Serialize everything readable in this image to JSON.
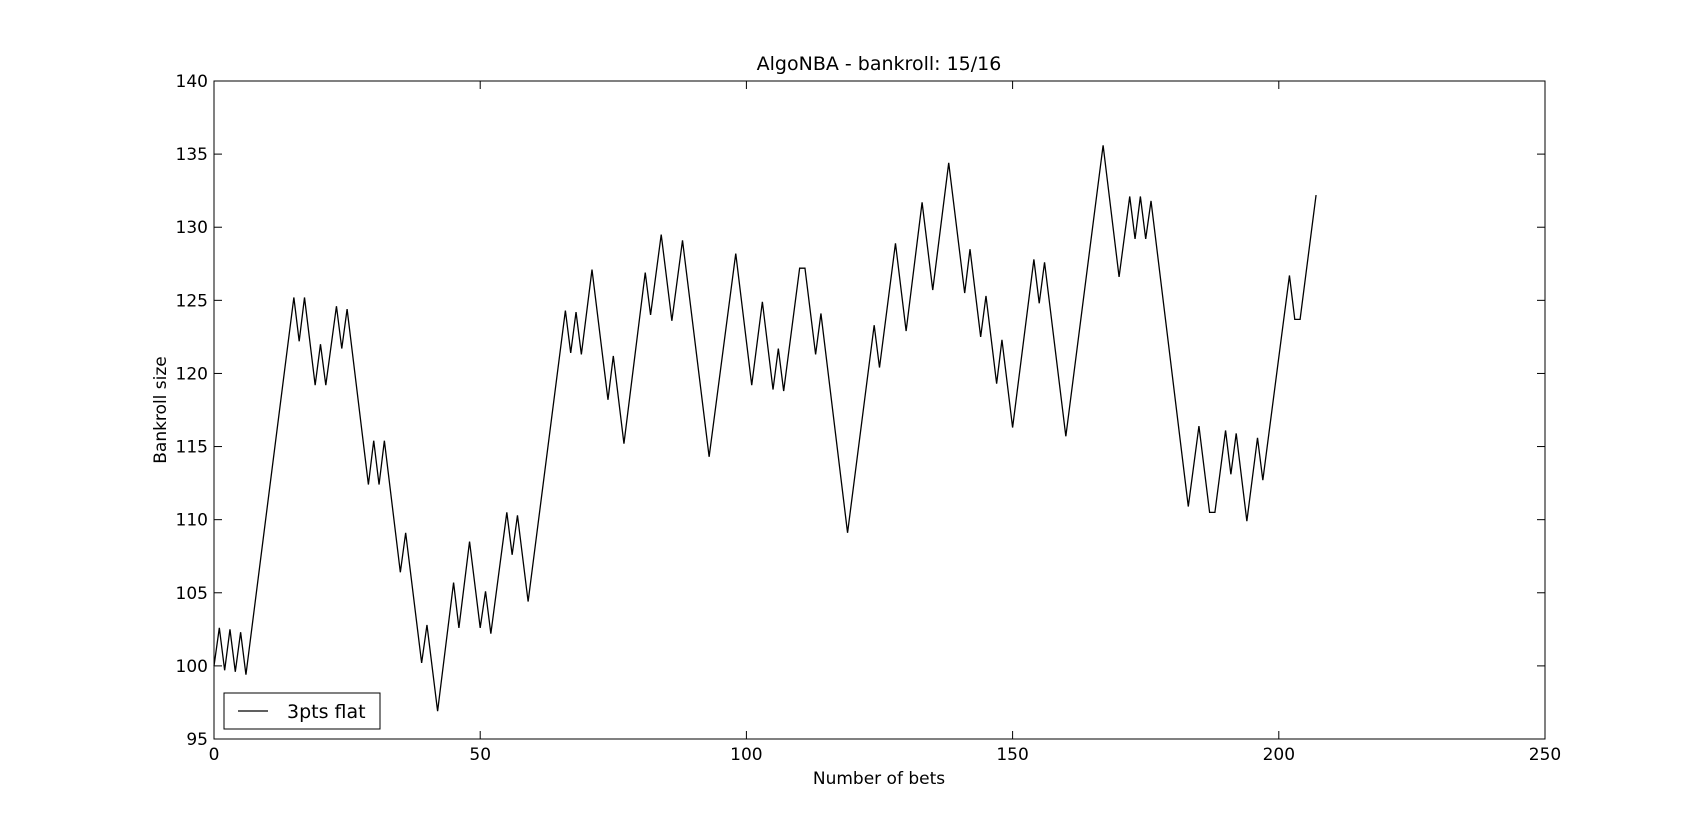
{
  "chart_data": {
    "type": "line",
    "title": "AlgoNBA - bankroll: 15/16",
    "x_label": "Number of bets",
    "y_label": "Bankroll size",
    "xlim": [
      0,
      250
    ],
    "xticks": [
      0,
      50,
      100,
      150,
      200,
      250
    ],
    "ylim": [
      95,
      140
    ],
    "yticks": [
      95,
      100,
      105,
      110,
      115,
      120,
      125,
      130,
      135,
      140
    ],
    "legend_position": "lower left",
    "x": [
      0,
      1,
      2,
      3,
      4,
      5,
      6,
      15,
      16,
      17,
      19,
      20,
      21,
      23,
      24,
      25,
      29,
      30,
      31,
      32,
      35,
      36,
      39,
      40,
      42,
      45,
      46,
      48,
      50,
      51,
      52,
      55,
      56,
      57,
      59,
      66,
      67,
      68,
      69,
      71,
      74,
      75,
      77,
      81,
      82,
      84,
      86,
      88,
      93,
      98,
      101,
      103,
      105,
      106,
      107,
      110,
      111,
      113,
      114,
      119,
      124,
      125,
      128,
      130,
      133,
      135,
      138,
      141,
      142,
      144,
      145,
      147,
      148,
      150,
      154,
      155,
      156,
      160,
      167,
      170,
      172,
      173,
      174,
      175,
      176,
      183,
      185,
      187,
      188,
      190,
      191,
      192,
      194,
      196,
      197,
      202,
      203,
      204,
      207
    ],
    "series": [
      {
        "name": "3pts flat",
        "color": "#000000",
        "values": [
          100.0,
          102.6,
          99.7,
          102.5,
          99.6,
          102.3,
          99.4,
          125.2,
          122.2,
          125.2,
          119.2,
          122.0,
          119.2,
          124.6,
          121.7,
          124.4,
          112.4,
          115.4,
          112.4,
          115.4,
          106.4,
          109.1,
          100.2,
          102.8,
          96.9,
          105.7,
          102.6,
          108.5,
          102.6,
          105.1,
          102.2,
          110.5,
          107.6,
          110.3,
          104.4,
          124.3,
          121.4,
          124.2,
          121.3,
          127.1,
          118.2,
          121.2,
          115.2,
          126.9,
          124.0,
          129.5,
          123.6,
          129.1,
          114.3,
          128.2,
          119.2,
          124.9,
          118.9,
          121.7,
          118.8,
          127.2,
          127.2,
          121.3,
          124.1,
          109.1,
          123.3,
          120.4,
          128.9,
          122.9,
          131.7,
          125.7,
          134.4,
          125.5,
          128.5,
          122.5,
          125.3,
          119.3,
          122.3,
          116.3,
          127.8,
          124.8,
          127.6,
          115.7,
          135.6,
          126.6,
          132.1,
          129.2,
          132.1,
          129.2,
          131.8,
          110.9,
          116.4,
          110.5,
          110.5,
          116.1,
          113.1,
          115.9,
          109.9,
          115.6,
          112.7,
          126.7,
          123.7,
          123.7,
          132.2
        ]
      }
    ]
  }
}
